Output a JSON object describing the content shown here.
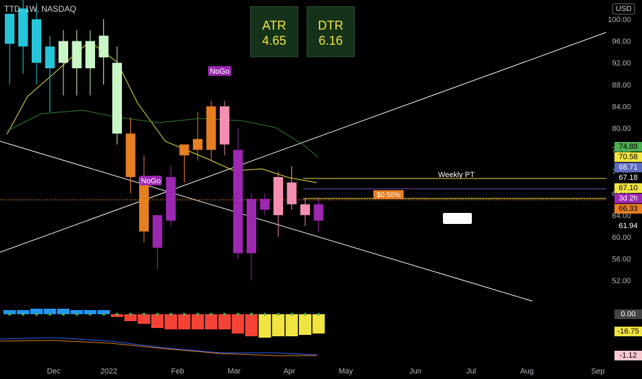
{
  "header": {
    "symbol_line": "TTD, 1W, NASDAQ",
    "currency": "USD"
  },
  "stats": {
    "atr_label": "ATR",
    "atr_value": "4.65",
    "dtr_label": "DTR",
    "dtr_value": "6.16"
  },
  "colors": {
    "bg": "#000000",
    "green_bar": "#4caf50",
    "yellow": "#ffeb3b",
    "pink": "#f48fb1",
    "purple": "#9c27b0",
    "orange": "#e67e22",
    "cyan": "#26c6da",
    "red_arrow": "#ef5350"
  },
  "price_tags": [
    {
      "value": "74.88",
      "bg": "#4caf50",
      "fg": "#000"
    },
    {
      "value": "70.58",
      "bg": "#f0e442",
      "fg": "#000"
    },
    {
      "value": "68.71",
      "bg": "#5c6bc0",
      "fg": "#fff"
    },
    {
      "value": "67.18",
      "bg": "#000",
      "fg": "#fff"
    },
    {
      "value": "67.10",
      "bg": "#f0e442",
      "fg": "#000"
    },
    {
      "value": "3d 2h",
      "bg": "#9c27b0",
      "fg": "#fff"
    },
    {
      "value": "66.33",
      "bg": "#e67e22",
      "fg": "#000"
    },
    {
      "value": "61.94",
      "bg": "#000",
      "fg": "#fff"
    },
    {
      "value": "0.00",
      "bg": "#444",
      "fg": "#fff"
    },
    {
      "value": "-16.75",
      "bg": "#f0e442",
      "fg": "#000"
    },
    {
      "value": "-1.12",
      "bg": "#f8c8d0",
      "fg": "#000"
    }
  ],
  "annotations": {
    "weekly_pt": "Weekly PT",
    "nogo": "NoGo",
    "fifty": "$0 50%"
  },
  "chart_data": {
    "type": "candlestick",
    "title": "TTD, 1W, NASDAQ",
    "y_ticks": [
      100,
      96,
      92,
      88,
      84,
      80,
      76,
      72,
      68,
      64,
      60,
      56,
      52
    ],
    "y_range": [
      48.5,
      102.8
    ],
    "x_ticks": [
      "Dec",
      "2022",
      "Feb",
      "Mar",
      "Apr",
      "May",
      "Jun",
      "Jul",
      "Aug",
      "Sep"
    ],
    "candles": [
      {
        "o": 95.5,
        "h": 101,
        "l": 88,
        "c": 101,
        "color": "#26c6da"
      },
      {
        "o": 95,
        "h": 104,
        "l": 90,
        "c": 102,
        "color": "#26c6da"
      },
      {
        "o": 100,
        "h": 103,
        "l": 88,
        "c": 92,
        "color": "#26c6da"
      },
      {
        "o": 91,
        "h": 97,
        "l": 83,
        "c": 95,
        "color": "#26c6da"
      },
      {
        "o": 92,
        "h": 98,
        "l": 86,
        "c": 96,
        "color": "#c8f7c5"
      },
      {
        "o": 91,
        "h": 98,
        "l": 86,
        "c": 96,
        "color": "#c8f7c5"
      },
      {
        "o": 91,
        "h": 98,
        "l": 86,
        "c": 96,
        "color": "#c8f7c5"
      },
      {
        "o": 93,
        "h": 100,
        "l": 88,
        "c": 97,
        "color": "#c8f7c5"
      },
      {
        "o": 92,
        "h": 95,
        "l": 77,
        "c": 79,
        "color": "#c8f7c5"
      },
      {
        "o": 79,
        "h": 82,
        "l": 68,
        "c": 71,
        "color": "#e67e22"
      },
      {
        "o": 71,
        "h": 75,
        "l": 59,
        "c": 61,
        "color": "#e67e22"
      },
      {
        "o": 58,
        "h": 64,
        "l": 54,
        "c": 64,
        "color": "#9c27b0"
      },
      {
        "o": 63,
        "h": 73,
        "l": 62,
        "c": 71,
        "color": "#9c27b0"
      },
      {
        "o": 75,
        "h": 77,
        "l": 70,
        "c": 77,
        "color": "#e67e22"
      },
      {
        "o": 76,
        "h": 83,
        "l": 74,
        "c": 78,
        "color": "#e67e22"
      },
      {
        "o": 76,
        "h": 85,
        "l": 74,
        "c": 84,
        "color": "#e67e22"
      },
      {
        "o": 84,
        "h": 85,
        "l": 75,
        "c": 77,
        "color": "#f48fb1"
      },
      {
        "o": 76,
        "h": 80,
        "l": 56,
        "c": 57,
        "color": "#9c27b0"
      },
      {
        "o": 57,
        "h": 68,
        "l": 52,
        "c": 67,
        "color": "#9c27b0"
      },
      {
        "o": 65,
        "h": 68,
        "l": 64,
        "c": 67,
        "color": "#9c27b0"
      },
      {
        "o": 64,
        "h": 72,
        "l": 60,
        "c": 71,
        "color": "#f48fb1"
      },
      {
        "o": 70,
        "h": 73,
        "l": 65,
        "c": 66,
        "color": "#f48fb1"
      },
      {
        "o": 64,
        "h": 67,
        "l": 62,
        "c": 66,
        "color": "#f48fb1"
      },
      {
        "o": 63,
        "h": 67,
        "l": 61,
        "c": 66,
        "color": "#9c27b0"
      }
    ]
  }
}
